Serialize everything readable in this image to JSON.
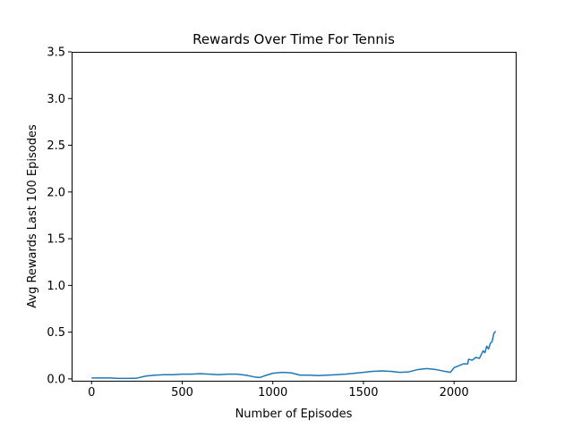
{
  "chart_data": {
    "type": "line",
    "title": "Rewards Over Time For Tennis",
    "xlabel": "Number of Episodes",
    "ylabel": "Avg Rewards Last 100 Episodes",
    "xlim": [
      -110,
      2340
    ],
    "ylim": [
      -0.02,
      3.5
    ],
    "xticks": [
      0,
      500,
      1000,
      1500,
      2000
    ],
    "xtick_labels": [
      "0",
      "500",
      "1000",
      "1500",
      "2000"
    ],
    "yticks": [
      0.0,
      0.5,
      1.0,
      1.5,
      2.0,
      2.5,
      3.0,
      3.5
    ],
    "ytick_labels": [
      "0.0",
      "0.5",
      "1.0",
      "1.5",
      "2.0",
      "2.5",
      "3.0",
      "3.5"
    ],
    "grid": false,
    "line_color": "#1f77b4",
    "series": [
      {
        "x": [
          0,
          50,
          100,
          150,
          200,
          250,
          300,
          350,
          400,
          450,
          500,
          550,
          600,
          650,
          700,
          750,
          800,
          850,
          900,
          930,
          950,
          1000,
          1050,
          1100,
          1150,
          1200,
          1250,
          1300,
          1350,
          1400,
          1450,
          1500,
          1550,
          1600,
          1650,
          1700,
          1750,
          1800,
          1850,
          1900,
          1950,
          1980,
          2000,
          2050,
          2075,
          2080,
          2100,
          2120,
          2140,
          2160,
          2170,
          2180,
          2190,
          2200,
          2210,
          2220,
          2230
        ],
        "y": [
          0.01,
          0.01,
          0.01,
          0.005,
          0.005,
          0.008,
          0.03,
          0.04,
          0.045,
          0.045,
          0.05,
          0.05,
          0.055,
          0.05,
          0.045,
          0.05,
          0.05,
          0.04,
          0.02,
          0.015,
          0.03,
          0.06,
          0.07,
          0.065,
          0.04,
          0.04,
          0.035,
          0.04,
          0.045,
          0.05,
          0.06,
          0.07,
          0.08,
          0.085,
          0.08,
          0.07,
          0.075,
          0.1,
          0.11,
          0.1,
          0.08,
          0.07,
          0.12,
          0.16,
          0.16,
          0.21,
          0.2,
          0.23,
          0.22,
          0.3,
          0.28,
          0.35,
          0.32,
          0.38,
          0.4,
          0.49,
          0.51
        ]
      }
    ]
  }
}
